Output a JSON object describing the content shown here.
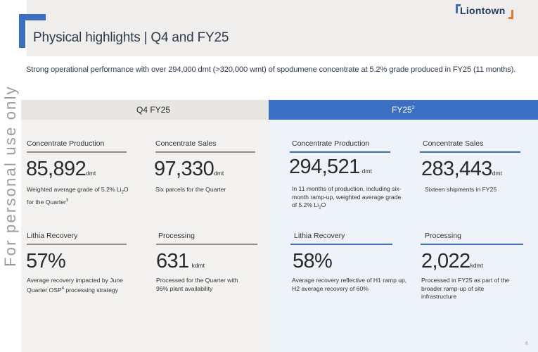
{
  "brand": {
    "logo_text": "Liontown"
  },
  "title": "Physical highlights | Q4 and FY25",
  "subtitle": "Strong operational performance with over 294,000 dmt (>320,000 wmt) of spodumene concentrate at 5.2% grade produced in FY25 (11 months).",
  "watermark": "For personal use only",
  "headers": {
    "q4": "Q4 FY25",
    "fy": "FY25",
    "fy_footnote": "2"
  },
  "q4": {
    "production": {
      "label": "Concentrate Production",
      "value": "85,892",
      "unit": "dmt",
      "desc": {
        "pre": "Weighted average grade of 5.2% Li",
        "sub": "2",
        "mid": "O",
        "line2": "for the Quarter",
        "sup": "3"
      }
    },
    "sales": {
      "label": "Concentrate Sales",
      "value": "97,330",
      "unit": "dmt",
      "desc": "Six parcels for the Quarter"
    },
    "recovery": {
      "label": "Lithia Recovery",
      "value": "57%",
      "desc": {
        "l1": "Average recovery impacted by June",
        "l2a": "Quarter OSP",
        "sup": "4",
        "l2b": " processing strategy"
      }
    },
    "processing": {
      "label": "Processing",
      "value": "631",
      "unit": "kdmt",
      "desc": {
        "l1": "Processed for the Quarter with",
        "l2": "96% plant availability"
      }
    }
  },
  "fy": {
    "production": {
      "label": "Concentrate Production",
      "value": "294,521",
      "unit": "dmt",
      "desc": {
        "l1": "In 11 months of production, including six-",
        "l2": "month ramp-up, weighted average grade",
        "l3a": "of 5.2% Li",
        "sub": "2",
        "l3b": "O"
      }
    },
    "sales": {
      "label": "Concentrate Sales",
      "value": "283,443",
      "unit": "dmt",
      "desc": "Sixteen shipments in FY25"
    },
    "recovery": {
      "label": "Lithia Recovery",
      "value": "58%",
      "desc": {
        "l1": "Average recovery reflective of H1 ramp up,",
        "l2": "H2 average recovery of 60%"
      }
    },
    "processing": {
      "label": "Processing",
      "value": "2,022",
      "unit": "kdmt",
      "desc": {
        "l1": "Processed in FY25 as part of the",
        "l2": "broader ramp-up of site",
        "l3": "infrastructure"
      }
    }
  },
  "page_number": "6",
  "colors": {
    "accent_blue": "#3b6fc4",
    "accent_orange": "#e07a2a",
    "q4_panel": "#f3f2f0",
    "fy_panel": "#eef3fa"
  }
}
